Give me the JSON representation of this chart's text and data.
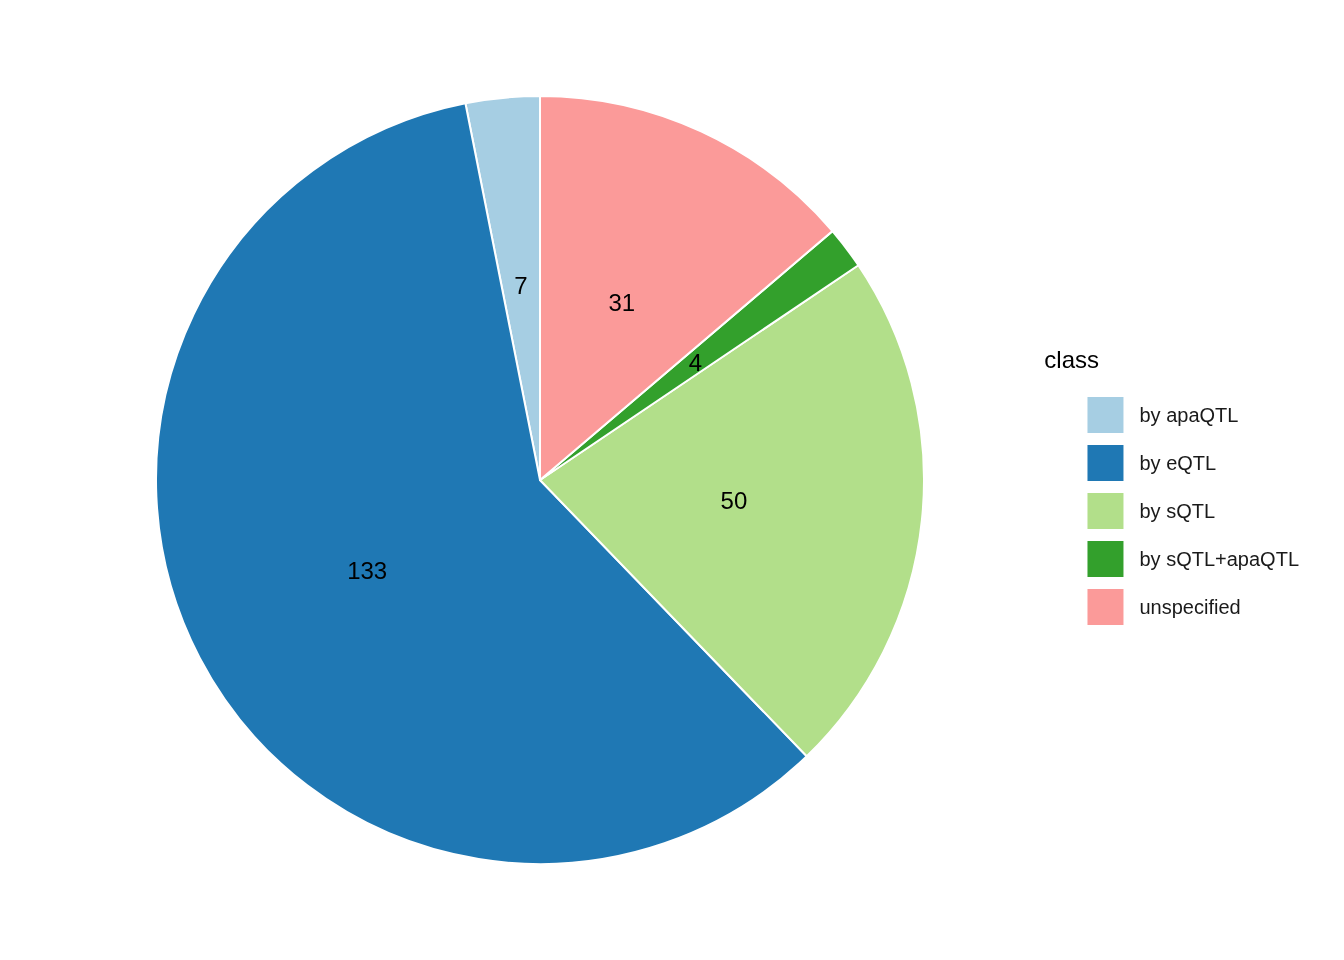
{
  "chart_data": {
    "type": "pie",
    "legend_title": "class",
    "legend": "right",
    "categories": [
      "by apaQTL",
      "by eQTL",
      "by sQTL",
      "by sQTL+apaQTL",
      "unspecified"
    ],
    "values": [
      7,
      133,
      50,
      4,
      31
    ],
    "colors": [
      "#a6cee3",
      "#1f78b4",
      "#b2df8a",
      "#33a02c",
      "#fb9a99"
    ],
    "data_labels": true
  }
}
